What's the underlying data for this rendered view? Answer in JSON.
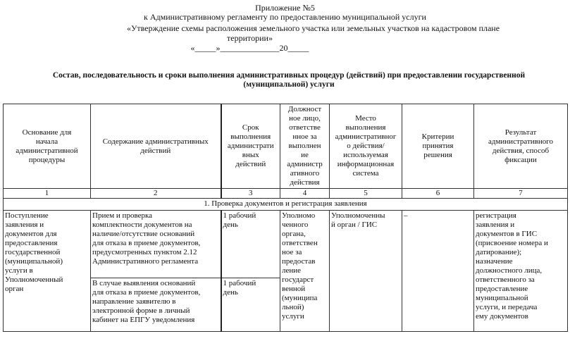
{
  "header": {
    "line1": "Приложение №5",
    "line2": "к Административному регламенту по предоставлению муниципальной услуги",
    "line3": "«Утверждение схемы расположения земельного участка или земельных участков на кадастровом плане",
    "line4": "территории»",
    "line5": "«_____»______________20_____"
  },
  "title": "Состав, последовательность и сроки выполнения административных процедур (действий) при предоставлении государственной (муниципальной) услуги",
  "table": {
    "columns": [
      "Основание для\nначала\nадминистративной\nпроцедуры",
      "Содержание административных\nдействий",
      "Срок\nвыполнения\nадминистрати\nвных\nдействий",
      "Должност\nное лицо,\nответстве\nнное за\nвыполнен\nие\nадминистр\nативного\nдействия",
      "Место\nвыполнения\nадминистративног\nо действия/\nиспользуемая\nинформационная\nсистема",
      "Критерии\nпринятия\nрешения",
      "Результат\nадминистративного\nдействия, способ\nфиксации"
    ],
    "numbers": [
      "1",
      "2",
      "3",
      "4",
      "5",
      "6",
      "7"
    ],
    "section": "1.   Проверка документов и регистрация заявления",
    "rows": {
      "basis": "Поступление\nзаявления и\nдокументов для\nпредоставления\nгосударственной\n(муниципальной)\nуслуги в\nУполномоченный\nорган",
      "action1": "Прием и проверка\nкомплектности документов на\nналичие/отсутствие оснований\nдля отказа в приеме документов,\nпредусмотренных пунктом 2.12\nАдминистративного регламента",
      "term1": "1 рабочий\nдень",
      "official": "Уполномо\nченного\nоргана,\nответствен\nное за\nпредостав\nление\nгосударст\nвенной\n(муниципа\nльной)\nуслуги",
      "place": "Уполномоченны\nй орган / ГИС",
      "criteria": "–",
      "result": "регистрация\nзаявления и\nдокументов в ГИС\n(присвоение номера и\nдатирование);\nназначение\nдолжностного лица,\nответственного за\nпредоставление\nмуниципальной\nуслуги, и передача\nему документов",
      "action2": "В случае выявления оснований\nдля отказа в приеме документов,\nнаправление заявителю в\nэлектронной форме в личный\nкабинет на ЕПГУ уведомления",
      "term2": "1 рабочий\nдень"
    }
  }
}
